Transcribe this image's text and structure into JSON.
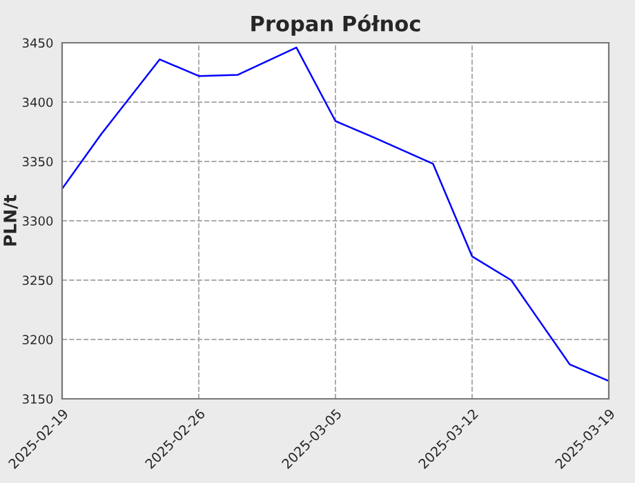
{
  "chart_data": {
    "type": "line",
    "title": "Propan Północ",
    "ylabel": "PLN/t",
    "x": [
      "2025-02-19",
      "2025-02-21",
      "2025-02-24",
      "2025-02-26",
      "2025-02-28",
      "2025-03-03",
      "2025-03-05",
      "2025-03-07",
      "2025-03-10",
      "2025-03-12",
      "2025-03-14",
      "2025-03-17",
      "2025-03-19"
    ],
    "series": [
      {
        "color": "#0000ff",
        "values": [
          3327,
          3373,
          3436,
          3422,
          3423,
          3446,
          3384,
          3370,
          3348,
          3270,
          3250,
          3179,
          3165
        ]
      }
    ],
    "xlim": [
      "2025-02-19",
      "2025-03-19"
    ],
    "xticks": [
      "2025-02-19",
      "2025-02-26",
      "2025-03-05",
      "2025-03-12",
      "2025-03-19"
    ],
    "ylim": [
      3150,
      3450
    ],
    "yticks": [
      3150,
      3200,
      3250,
      3300,
      3350,
      3400,
      3450
    ],
    "grid": true,
    "marker": "none",
    "line_style": "solid"
  }
}
